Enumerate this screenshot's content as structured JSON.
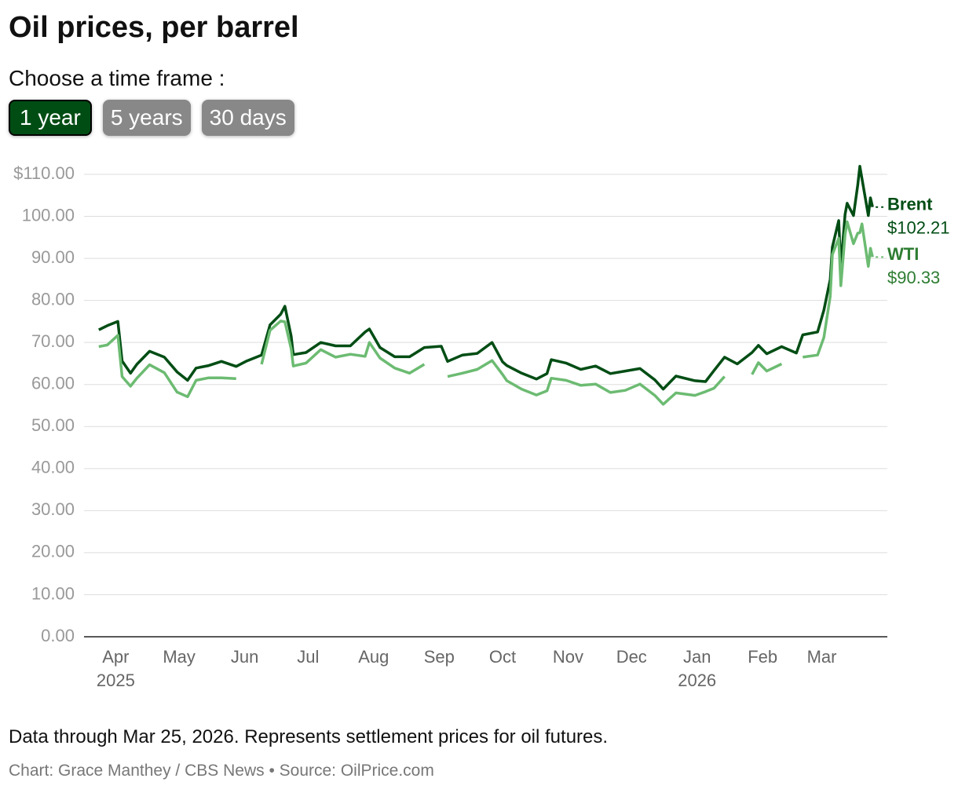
{
  "title": "Oil prices, per barrel",
  "prompt": "Choose a time frame :",
  "buttons": [
    {
      "label": "1 year",
      "selected": true
    },
    {
      "label": "5 years",
      "selected": false
    },
    {
      "label": "30 days",
      "selected": false
    }
  ],
  "chart_data": {
    "type": "line",
    "x": [
      "2025-03-24",
      "2025-03-28",
      "2025-04-02",
      "2025-04-04",
      "2025-04-08",
      "2025-04-11",
      "2025-04-17",
      "2025-04-24",
      "2025-04-30",
      "2025-05-05",
      "2025-05-09",
      "2025-05-15",
      "2025-05-21",
      "2025-05-28",
      "2025-06-02",
      "2025-06-09",
      "2025-06-13",
      "2025-06-18",
      "2025-06-20",
      "2025-06-23",
      "2025-06-24",
      "2025-06-30",
      "2025-07-07",
      "2025-07-14",
      "2025-07-21",
      "2025-07-28",
      "2025-07-30",
      "2025-08-04",
      "2025-08-11",
      "2025-08-18",
      "2025-08-25",
      "2025-09-02",
      "2025-09-05",
      "2025-09-12",
      "2025-09-19",
      "2025-09-26",
      "2025-10-01",
      "2025-10-03",
      "2025-10-10",
      "2025-10-17",
      "2025-10-22",
      "2025-10-24",
      "2025-10-31",
      "2025-11-07",
      "2025-11-14",
      "2025-11-21",
      "2025-11-28",
      "2025-12-05",
      "2025-12-12",
      "2025-12-16",
      "2025-12-22",
      "2025-12-31",
      "2026-01-05",
      "2026-01-09",
      "2026-01-14",
      "2026-01-20",
      "2026-01-27",
      "2026-01-30",
      "2026-02-03",
      "2026-02-10",
      "2026-02-17",
      "2026-02-20",
      "2026-02-27",
      "2026-03-02",
      "2026-03-05",
      "2026-03-06",
      "2026-03-09",
      "2026-03-10",
      "2026-03-12",
      "2026-03-13",
      "2026-03-16",
      "2026-03-18",
      "2026-03-19",
      "2026-03-20",
      "2026-03-23",
      "2026-03-24",
      "2026-03-25"
    ],
    "series": [
      {
        "name": "Brent",
        "color": "#004d14",
        "end_value_label": "$102.21",
        "values": [
          73,
          74,
          75,
          65.6,
          62.7,
          64.8,
          67.9,
          66.5,
          63,
          61,
          63.9,
          64.5,
          65.5,
          64.3,
          65.6,
          67,
          74.2,
          76.7,
          78.6,
          71.5,
          67.1,
          67.6,
          70,
          69.2,
          69.2,
          72.5,
          73.2,
          68.8,
          66.6,
          66.6,
          68.8,
          69.1,
          65.5,
          67,
          67.4,
          70,
          65.4,
          64.5,
          62.7,
          61.3,
          62.6,
          65.9,
          65.1,
          63.6,
          64.4,
          62.6,
          63.2,
          63.8,
          61.1,
          58.9,
          62,
          60.9,
          60.7,
          63.3,
          66.5,
          64.9,
          67.6,
          69.3,
          67.3,
          69,
          67.5,
          71.8,
          72.5,
          77.7,
          85,
          92.7,
          99,
          87.8,
          100.5,
          103.1,
          100.2,
          107.4,
          111.9,
          109,
          100.2,
          104.4,
          102.21
        ]
      },
      {
        "name": "WTI",
        "color": "#6cbb72",
        "label_color": "#2e7d32",
        "end_value_label": "$90.33",
        "values": [
          69,
          69.4,
          71.7,
          61.9,
          59.6,
          61.5,
          64.7,
          62.8,
          58.2,
          57.1,
          61,
          61.6,
          61.6,
          61.4,
          null,
          64.8,
          72.9,
          75.1,
          74.9,
          68.5,
          64.4,
          65.1,
          68.3,
          66.5,
          67.2,
          66.7,
          70,
          66.3,
          63.9,
          62.7,
          64.8,
          null,
          61.9,
          62.7,
          63.6,
          65.7,
          62.4,
          60.9,
          58.9,
          57.5,
          58.5,
          61.5,
          61,
          59.8,
          60.1,
          58.1,
          58.6,
          60.1,
          57.4,
          55.3,
          58,
          57.4,
          58.3,
          59.1,
          61.9,
          null,
          62.4,
          65.2,
          63.2,
          64.9,
          null,
          66.5,
          67,
          71.2,
          81,
          90.9,
          94.8,
          83.5,
          95.7,
          98.7,
          93.5,
          96,
          96.1,
          98.2,
          88.1,
          92.4,
          90.33
        ]
      }
    ],
    "xlim": [
      "2025-03-17",
      "2026-04-01"
    ],
    "xticks": [
      {
        "value": "2025-04-01",
        "label": "Apr",
        "sublabel": "2025"
      },
      {
        "value": "2025-05-01",
        "label": "May"
      },
      {
        "value": "2025-06-01",
        "label": "Jun"
      },
      {
        "value": "2025-07-01",
        "label": "Jul"
      },
      {
        "value": "2025-08-01",
        "label": "Aug"
      },
      {
        "value": "2025-09-01",
        "label": "Sep"
      },
      {
        "value": "2025-10-01",
        "label": "Oct"
      },
      {
        "value": "2025-11-01",
        "label": "Nov"
      },
      {
        "value": "2025-12-01",
        "label": "Dec"
      },
      {
        "value": "2026-01-01",
        "label": "Jan",
        "sublabel": "2026"
      },
      {
        "value": "2026-02-01",
        "label": "Feb"
      },
      {
        "value": "2026-03-01",
        "label": "Mar"
      }
    ],
    "ylim": [
      0,
      110
    ],
    "yticks": [
      {
        "value": 0,
        "label": "0.00"
      },
      {
        "value": 10,
        "label": "10.00"
      },
      {
        "value": 20,
        "label": "20.00"
      },
      {
        "value": 30,
        "label": "30.00"
      },
      {
        "value": 40,
        "label": "40.00"
      },
      {
        "value": 50,
        "label": "50.00"
      },
      {
        "value": 60,
        "label": "60.00"
      },
      {
        "value": 70,
        "label": "70.00"
      },
      {
        "value": 80,
        "label": "80.00"
      },
      {
        "value": 90,
        "label": "90.00"
      },
      {
        "value": 100,
        "label": "100.00"
      },
      {
        "value": 110,
        "label": "$110.00"
      }
    ],
    "grid": true
  },
  "note": "Data through Mar 25, 2026. Represents settlement prices for oil futures.",
  "credit": "Chart: Grace Manthey / CBS News • Source: OilPrice.com"
}
